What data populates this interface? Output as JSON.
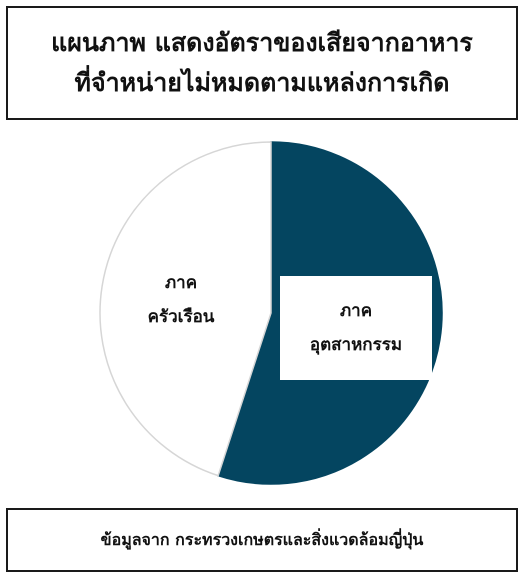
{
  "title": {
    "line1": "แผนภาพ แสดงอัตราของเสียจากอาหาร",
    "line2": "ที่จำหน่ายไม่หมดตามแหล่งการเกิด"
  },
  "chart_data": {
    "type": "pie",
    "categories": [
      "ภาคอุตสาหกรรม",
      "ภาคครัวเรือน"
    ],
    "values": [
      55,
      45
    ],
    "colors": [
      "#044560",
      "#ffffff"
    ],
    "slice_labels": [
      {
        "line1": "ภาค",
        "line2": "อุตสาหกรรม"
      },
      {
        "line1": "ภาค",
        "line2": "ครัวเรือน"
      }
    ]
  },
  "footer": {
    "source": "ข้อมูลจาก กระทรวงเกษตรและสิ่งแวดล้อมญี่ปุ่น"
  }
}
